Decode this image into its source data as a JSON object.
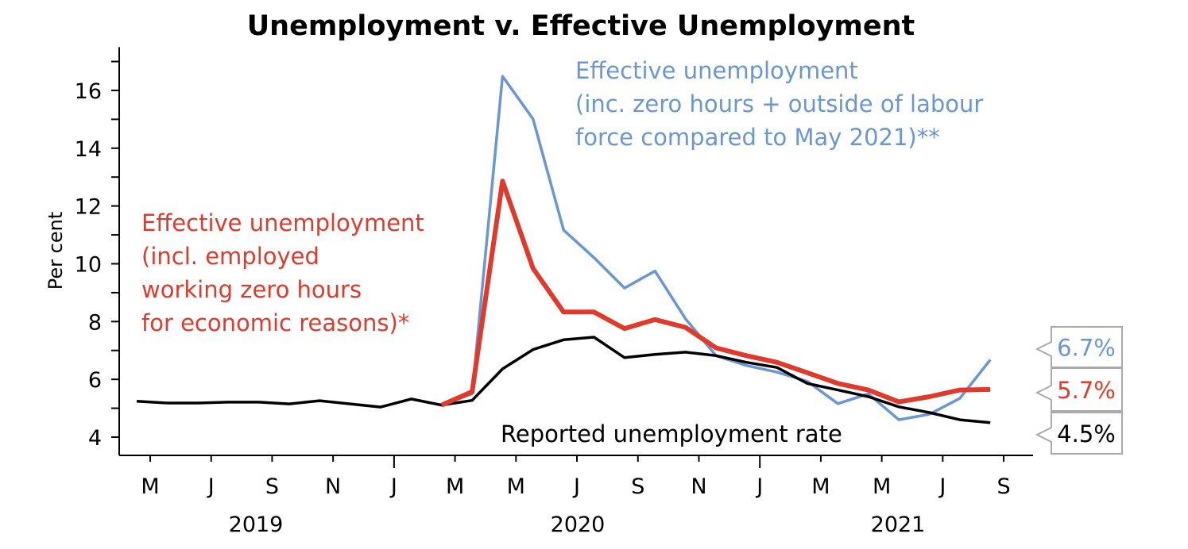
{
  "chart_data": {
    "type": "line",
    "title": "Unemployment v. Effective Unemployment",
    "ylabel": "Per cent",
    "xlabel": "",
    "ylim": [
      3.4,
      17.5
    ],
    "yticks": [
      4,
      6,
      8,
      10,
      12,
      14,
      16
    ],
    "grid": false,
    "x_tick_labels": [
      "M",
      "J",
      "S",
      "N",
      "J",
      "M",
      "M",
      "J",
      "S",
      "N",
      "J",
      "M",
      "M",
      "J",
      "S"
    ],
    "x_tick_months": [
      "May 2019",
      "Jul 2019",
      "Sep 2019",
      "Nov 2019",
      "Jan 2020",
      "Mar 2020",
      "May 2020",
      "Jul 2020",
      "Sep 2020",
      "Nov 2020",
      "Jan 2021",
      "Mar 2021",
      "May 2021",
      "Jul 2021",
      "Sep 2021"
    ],
    "year_labels": [
      "2019",
      "2020",
      "2021"
    ],
    "x": [
      "Apr 2019",
      "May 2019",
      "Jun 2019",
      "Jul 2019",
      "Aug 2019",
      "Sep 2019",
      "Oct 2019",
      "Nov 2019",
      "Dec 2019",
      "Jan 2020",
      "Feb 2020",
      "Mar 2020",
      "Apr 2020",
      "May 2020",
      "Jun 2020",
      "Jul 2020",
      "Aug 2020",
      "Sep 2020",
      "Oct 2020",
      "Nov 2020",
      "Dec 2020",
      "Jan 2021",
      "Feb 2021",
      "Mar 2021",
      "Apr 2021",
      "May 2021",
      "Jun 2021",
      "Jul 2021",
      "Aug 2021"
    ],
    "series": [
      {
        "name": "Reported unemployment rate",
        "color": "#000000",
        "values": [
          5.24,
          5.18,
          5.18,
          5.21,
          5.21,
          5.15,
          5.26,
          5.15,
          5.04,
          5.32,
          5.11,
          5.27,
          6.36,
          7.03,
          7.37,
          7.46,
          6.75,
          6.86,
          6.94,
          6.82,
          6.59,
          6.41,
          5.86,
          5.63,
          5.4,
          5.05,
          4.85,
          4.6,
          4.5
        ],
        "end_label": "4.5%"
      },
      {
        "name": "Effective unemployment (incl. employed working zero hours for economic reasons)*",
        "color": "#e03a2c",
        "values": [
          null,
          null,
          null,
          null,
          null,
          null,
          null,
          null,
          null,
          null,
          5.11,
          5.57,
          12.86,
          9.84,
          8.33,
          8.33,
          7.76,
          8.07,
          7.8,
          7.09,
          6.82,
          6.59,
          6.23,
          5.86,
          5.63,
          5.22,
          5.4,
          5.63,
          5.65
        ],
        "end_label": "5.7%"
      },
      {
        "name": "Effective unemployment (inc. zero hours + outside of labour force compared to May 2021)**",
        "color": "#6a96d2",
        "values": [
          null,
          null,
          null,
          null,
          null,
          null,
          null,
          null,
          null,
          null,
          5.11,
          5.5,
          16.49,
          15.01,
          11.17,
          10.21,
          9.16,
          9.75,
          8.1,
          6.82,
          6.48,
          6.25,
          5.93,
          5.16,
          5.5,
          4.6,
          4.79,
          5.34,
          6.68
        ],
        "end_label": "6.7%"
      }
    ],
    "annotations": {
      "red": [
        "Effective unemployment",
        "(incl. employed",
        "working zero hours",
        "for economic reasons)*"
      ],
      "blue": [
        "Effective unemployment",
        "(inc. zero hours + outside of labour",
        "force compared to May 2021)**"
      ],
      "black": "Reported unemployment rate"
    }
  }
}
